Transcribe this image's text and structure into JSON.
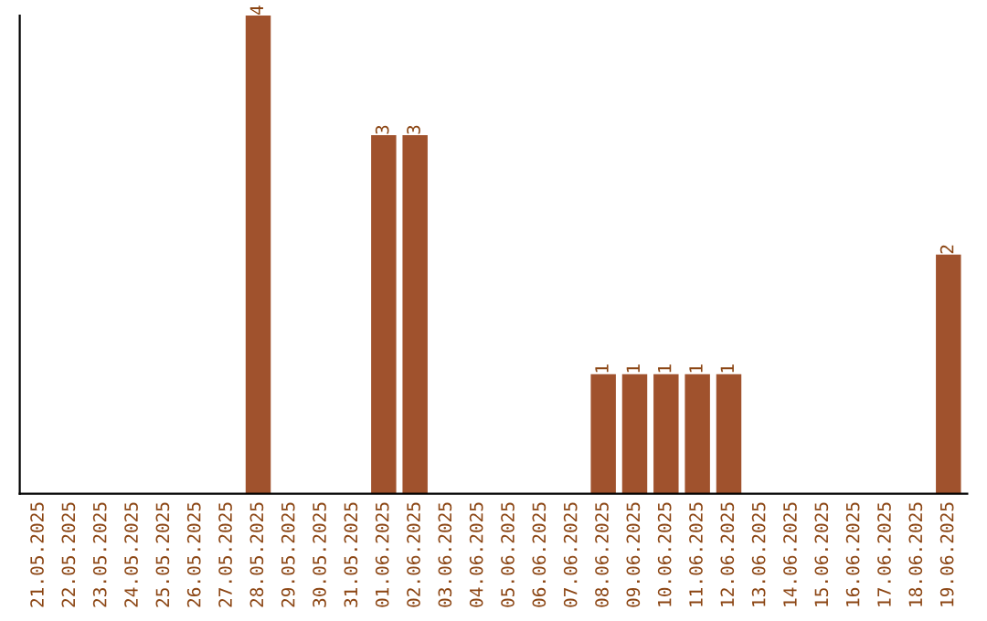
{
  "chart_data": {
    "type": "bar",
    "categories": [
      "21.05.2025",
      "22.05.2025",
      "23.05.2025",
      "24.05.2025",
      "25.05.2025",
      "26.05.2025",
      "27.05.2025",
      "28.05.2025",
      "29.05.2025",
      "30.05.2025",
      "31.05.2025",
      "01.06.2025",
      "02.06.2025",
      "03.06.2025",
      "04.06.2025",
      "05.06.2025",
      "06.06.2025",
      "07.06.2025",
      "08.06.2025",
      "09.06.2025",
      "10.06.2025",
      "11.06.2025",
      "12.06.2025",
      "13.06.2025",
      "14.06.2025",
      "15.06.2025",
      "16.06.2025",
      "17.06.2025",
      "18.06.2025",
      "19.06.2025"
    ],
    "values": [
      0,
      0,
      0,
      0,
      0,
      0,
      0,
      4,
      0,
      0,
      0,
      3,
      3,
      0,
      0,
      0,
      0,
      0,
      1,
      1,
      1,
      1,
      1,
      0,
      0,
      0,
      0,
      0,
      0,
      2
    ],
    "value_labels": [
      null,
      null,
      null,
      null,
      null,
      null,
      null,
      "4",
      null,
      null,
      null,
      "3",
      "3",
      null,
      null,
      null,
      null,
      null,
      "1",
      "1",
      "1",
      "1",
      "1",
      null,
      null,
      null,
      null,
      null,
      null,
      "2"
    ],
    "color": "#a0522d",
    "tick_labels": "x",
    "grid": false,
    "legend": false
  }
}
